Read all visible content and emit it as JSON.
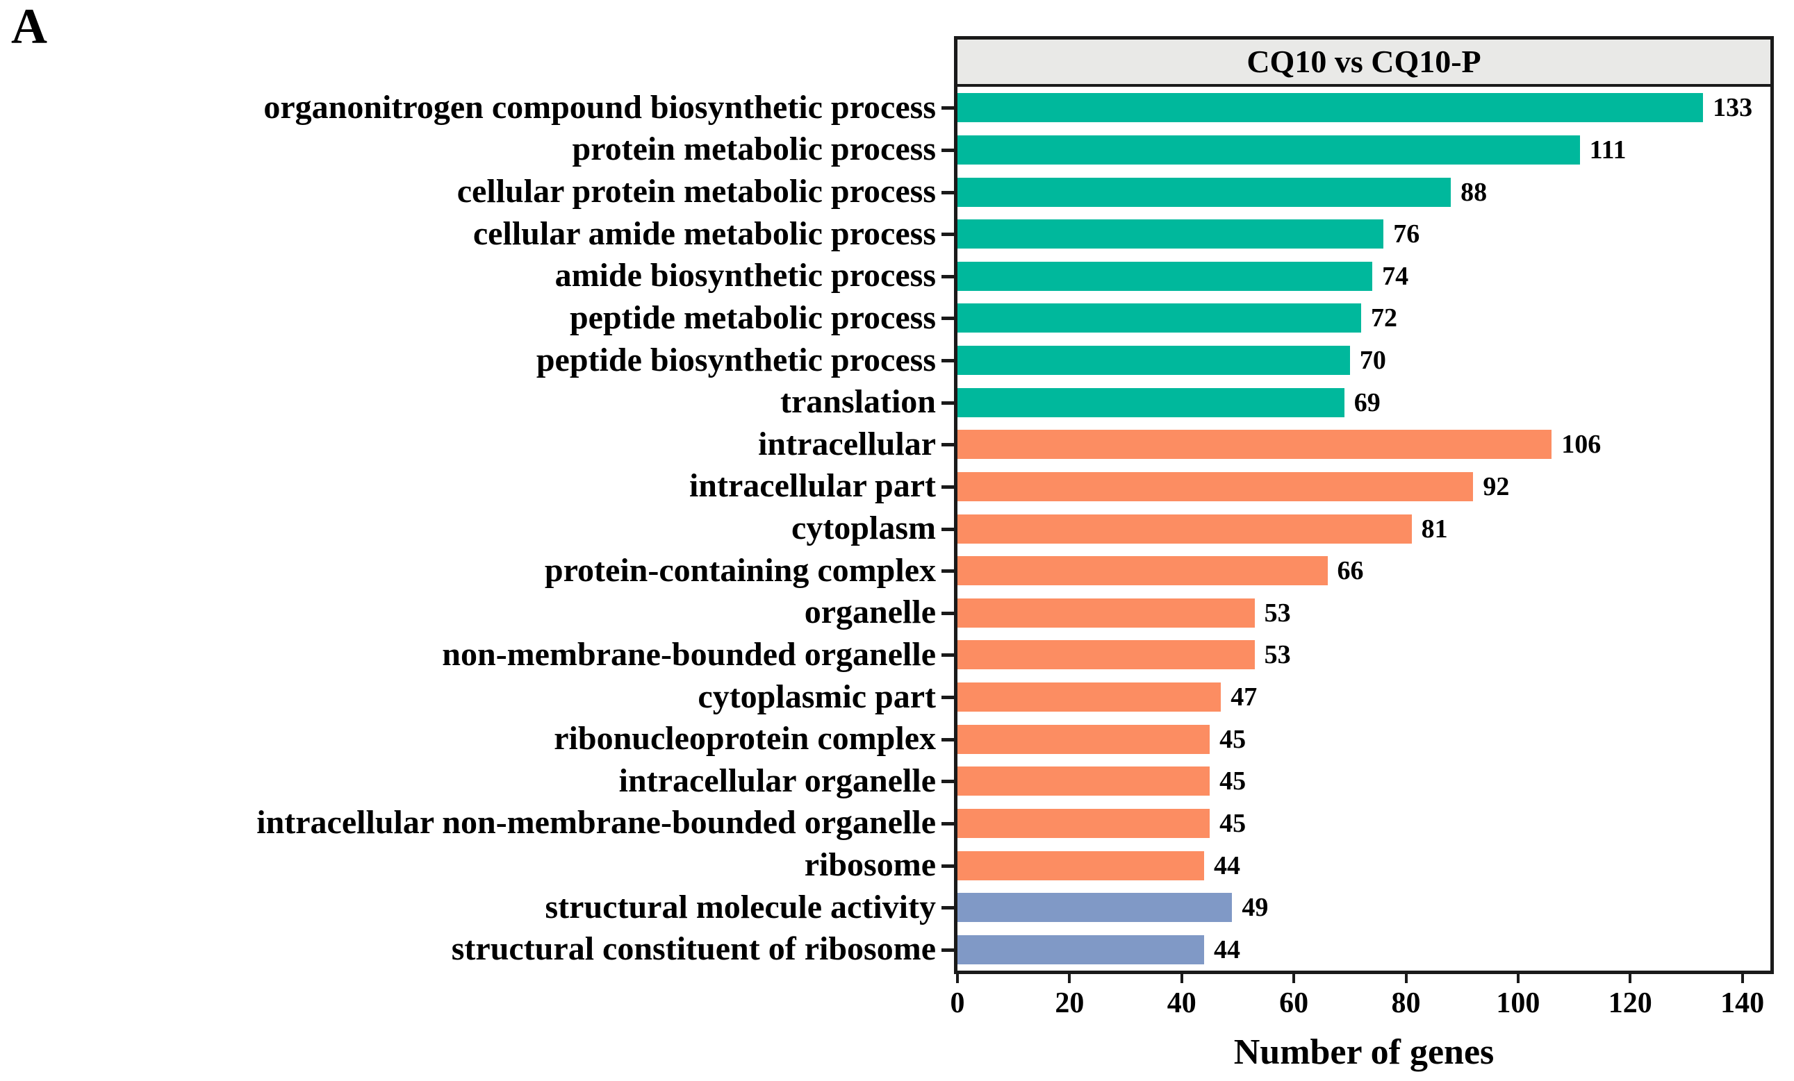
{
  "panel": {
    "label": "A"
  },
  "colors": {
    "frame": "#1a1a1a",
    "header_bg": "#e9e9e7",
    "biological_process": "#00b89c",
    "cellular_component": "#fc8d62",
    "molecular_function": "#8099c6"
  },
  "chart_data": {
    "type": "bar",
    "orientation": "horizontal",
    "title": "CQ10 vs CQ10-P",
    "xlabel": "Number of genes",
    "xlim": [
      0,
      145
    ],
    "xticks": [
      0,
      20,
      40,
      60,
      80,
      100,
      120,
      140
    ],
    "grid": false,
    "legend_position": "none",
    "categories": [
      "organonitrogen compound biosynthetic process",
      "protein metabolic process",
      "cellular protein metabolic process",
      "cellular amide metabolic process",
      "amide biosynthetic process",
      "peptide metabolic process",
      "peptide biosynthetic process",
      "translation",
      "intracellular",
      "intracellular part",
      "cytoplasm",
      "protein-containing complex",
      "organelle",
      "non-membrane-bounded organelle",
      "cytoplasmic part",
      "ribonucleoprotein complex",
      "intracellular organelle",
      "intracellular non-membrane-bounded organelle",
      "ribosome",
      "structural molecule activity",
      "structural constituent of ribosome"
    ],
    "values": [
      133,
      111,
      88,
      76,
      74,
      72,
      70,
      69,
      106,
      92,
      81,
      66,
      53,
      53,
      47,
      45,
      45,
      45,
      44,
      49,
      44
    ],
    "groups": [
      "biological_process",
      "biological_process",
      "biological_process",
      "biological_process",
      "biological_process",
      "biological_process",
      "biological_process",
      "biological_process",
      "cellular_component",
      "cellular_component",
      "cellular_component",
      "cellular_component",
      "cellular_component",
      "cellular_component",
      "cellular_component",
      "cellular_component",
      "cellular_component",
      "cellular_component",
      "cellular_component",
      "molecular_function",
      "molecular_function"
    ],
    "group_colors": {
      "biological_process": "#00b89c",
      "cellular_component": "#fc8d62",
      "molecular_function": "#8099c6"
    }
  }
}
